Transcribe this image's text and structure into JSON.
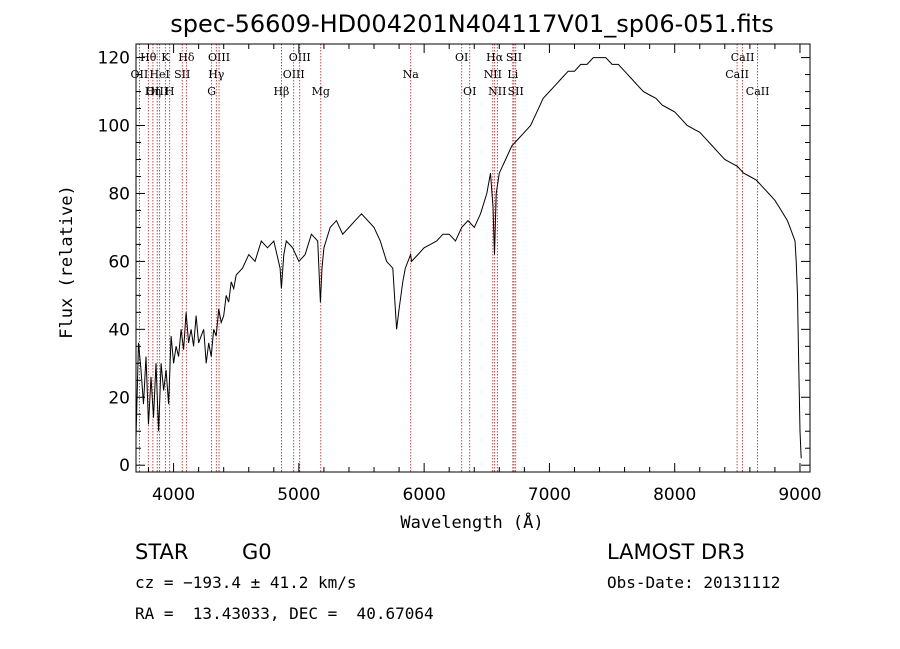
{
  "chart_data": {
    "type": "line",
    "title": "spec-56609-HD004201N404117V01_sp06-051.fits",
    "xlabel": "Wavelength (Å)",
    "ylabel": "Flux (relative)",
    "xlim": [
      3700,
      9080
    ],
    "ylim": [
      -2,
      124
    ],
    "xticks": [
      4000,
      5000,
      6000,
      7000,
      8000,
      9000
    ],
    "yticks": [
      0,
      20,
      40,
      60,
      80,
      100,
      120
    ],
    "series": [
      {
        "name": "flux",
        "x": [
          3700,
          3720,
          3740,
          3760,
          3780,
          3800,
          3820,
          3840,
          3860,
          3880,
          3900,
          3920,
          3940,
          3960,
          3980,
          4000,
          4020,
          4040,
          4060,
          4080,
          4100,
          4120,
          4140,
          4160,
          4180,
          4200,
          4220,
          4240,
          4260,
          4280,
          4300,
          4320,
          4340,
          4360,
          4380,
          4400,
          4420,
          4440,
          4460,
          4480,
          4500,
          4550,
          4600,
          4650,
          4700,
          4750,
          4800,
          4850,
          4861,
          4880,
          4900,
          4950,
          5000,
          5050,
          5100,
          5150,
          5172,
          5185,
          5200,
          5250,
          5300,
          5350,
          5400,
          5450,
          5500,
          5550,
          5600,
          5650,
          5700,
          5750,
          5780,
          5800,
          5830,
          5850,
          5892,
          5900,
          5950,
          6000,
          6050,
          6100,
          6150,
          6200,
          6250,
          6300,
          6350,
          6400,
          6450,
          6500,
          6530,
          6550,
          6562,
          6575,
          6600,
          6650,
          6700,
          6750,
          6800,
          6850,
          6900,
          6950,
          7000,
          7050,
          7100,
          7150,
          7200,
          7250,
          7300,
          7350,
          7400,
          7450,
          7500,
          7550,
          7600,
          7650,
          7700,
          7750,
          7800,
          7850,
          7900,
          7950,
          8000,
          8050,
          8100,
          8150,
          8200,
          8250,
          8300,
          8350,
          8400,
          8450,
          8500,
          8550,
          8600,
          8650,
          8700,
          8750,
          8800,
          8850,
          8900,
          8920,
          8940,
          8960,
          8970,
          8980,
          8990,
          9000,
          9010
        ],
        "values": [
          8,
          36,
          28,
          18,
          32,
          12,
          26,
          14,
          30,
          10,
          30,
          22,
          28,
          18,
          38,
          30,
          35,
          32,
          40,
          34,
          45,
          36,
          40,
          35,
          44,
          36,
          38,
          40,
          30,
          36,
          32,
          40,
          38,
          46,
          42,
          44,
          50,
          48,
          54,
          52,
          56,
          58,
          62,
          60,
          66,
          64,
          66,
          58,
          52,
          62,
          66,
          64,
          60,
          62,
          68,
          66,
          48,
          58,
          64,
          70,
          72,
          68,
          70,
          72,
          74,
          72,
          70,
          66,
          60,
          58,
          40,
          46,
          54,
          58,
          62,
          60,
          62,
          64,
          65,
          66,
          68,
          68,
          66,
          70,
          72,
          70,
          74,
          80,
          86,
          76,
          62,
          80,
          86,
          90,
          94,
          96,
          98,
          100,
          104,
          108,
          110,
          112,
          114,
          116,
          116,
          118,
          118,
          120,
          120,
          120,
          118,
          118,
          116,
          114,
          112,
          110,
          109,
          108,
          106,
          105,
          104,
          102,
          100,
          99,
          98,
          96,
          94,
          92,
          90,
          89,
          88,
          86,
          85,
          84,
          82,
          80,
          78,
          75,
          72,
          70,
          68,
          66,
          60,
          50,
          30,
          10,
          2
        ]
      }
    ],
    "annotations": [
      {
        "label": "Hθ",
        "wavelength": 3798,
        "row": 1
      },
      {
        "label": "OII",
        "wavelength": 3727,
        "row": 2
      },
      {
        "label": "OIII",
        "wavelength": 3869,
        "row": 3
      },
      {
        "label": "K",
        "wavelength": 3934,
        "row": 1
      },
      {
        "label": "HeI",
        "wavelength": 3889,
        "row": 2
      },
      {
        "label": "Hη",
        "wavelength": 3835,
        "row": 3
      },
      {
        "label": "Hδ",
        "wavelength": 4102,
        "row": 1
      },
      {
        "label": "SII",
        "wavelength": 4069,
        "row": 2
      },
      {
        "label": "H",
        "wavelength": 3969,
        "row": 3
      },
      {
        "label": "OIII",
        "wavelength": 4363,
        "row": 1
      },
      {
        "label": "Hγ",
        "wavelength": 4341,
        "row": 2
      },
      {
        "label": "G",
        "wavelength": 4304,
        "row": 3
      },
      {
        "label": "OIII",
        "wavelength": 5007,
        "row": 1
      },
      {
        "label": "OIII",
        "wavelength": 4959,
        "row": 2
      },
      {
        "label": "Hβ",
        "wavelength": 4861,
        "row": 3
      },
      {
        "label": "Mg",
        "wavelength": 5175,
        "row": 3
      },
      {
        "label": "Na",
        "wavelength": 5893,
        "row": 2
      },
      {
        "label": "OI",
        "wavelength": 6300,
        "row": 1
      },
      {
        "label": "OI",
        "wavelength": 6364,
        "row": 3
      },
      {
        "label": "Hα",
        "wavelength": 6563,
        "row": 1
      },
      {
        "label": "SII",
        "wavelength": 6717,
        "row": 1
      },
      {
        "label": "NII",
        "wavelength": 6548,
        "row": 2
      },
      {
        "label": "Li",
        "wavelength": 6708,
        "row": 2
      },
      {
        "label": "NII",
        "wavelength": 6584,
        "row": 3
      },
      {
        "label": "SII",
        "wavelength": 6731,
        "row": 3
      },
      {
        "label": "CaII",
        "wavelength": 8542,
        "row": 1
      },
      {
        "label": "CaII",
        "wavelength": 8498,
        "row": 2
      },
      {
        "label": "CaII",
        "wavelength": 8662,
        "row": 3
      }
    ]
  },
  "info": {
    "object_type": "STAR",
    "subclass": "G0",
    "survey": "LAMOST DR3",
    "cz": "cz = −193.4 ± 41.2 km/s",
    "obs_date": "Obs-Date: 20131112",
    "radec": "RA =  13.43033, DEC =  40.67064"
  },
  "colors": {
    "line": "#000000",
    "marker": "#b22222",
    "background": "#ffffff"
  }
}
